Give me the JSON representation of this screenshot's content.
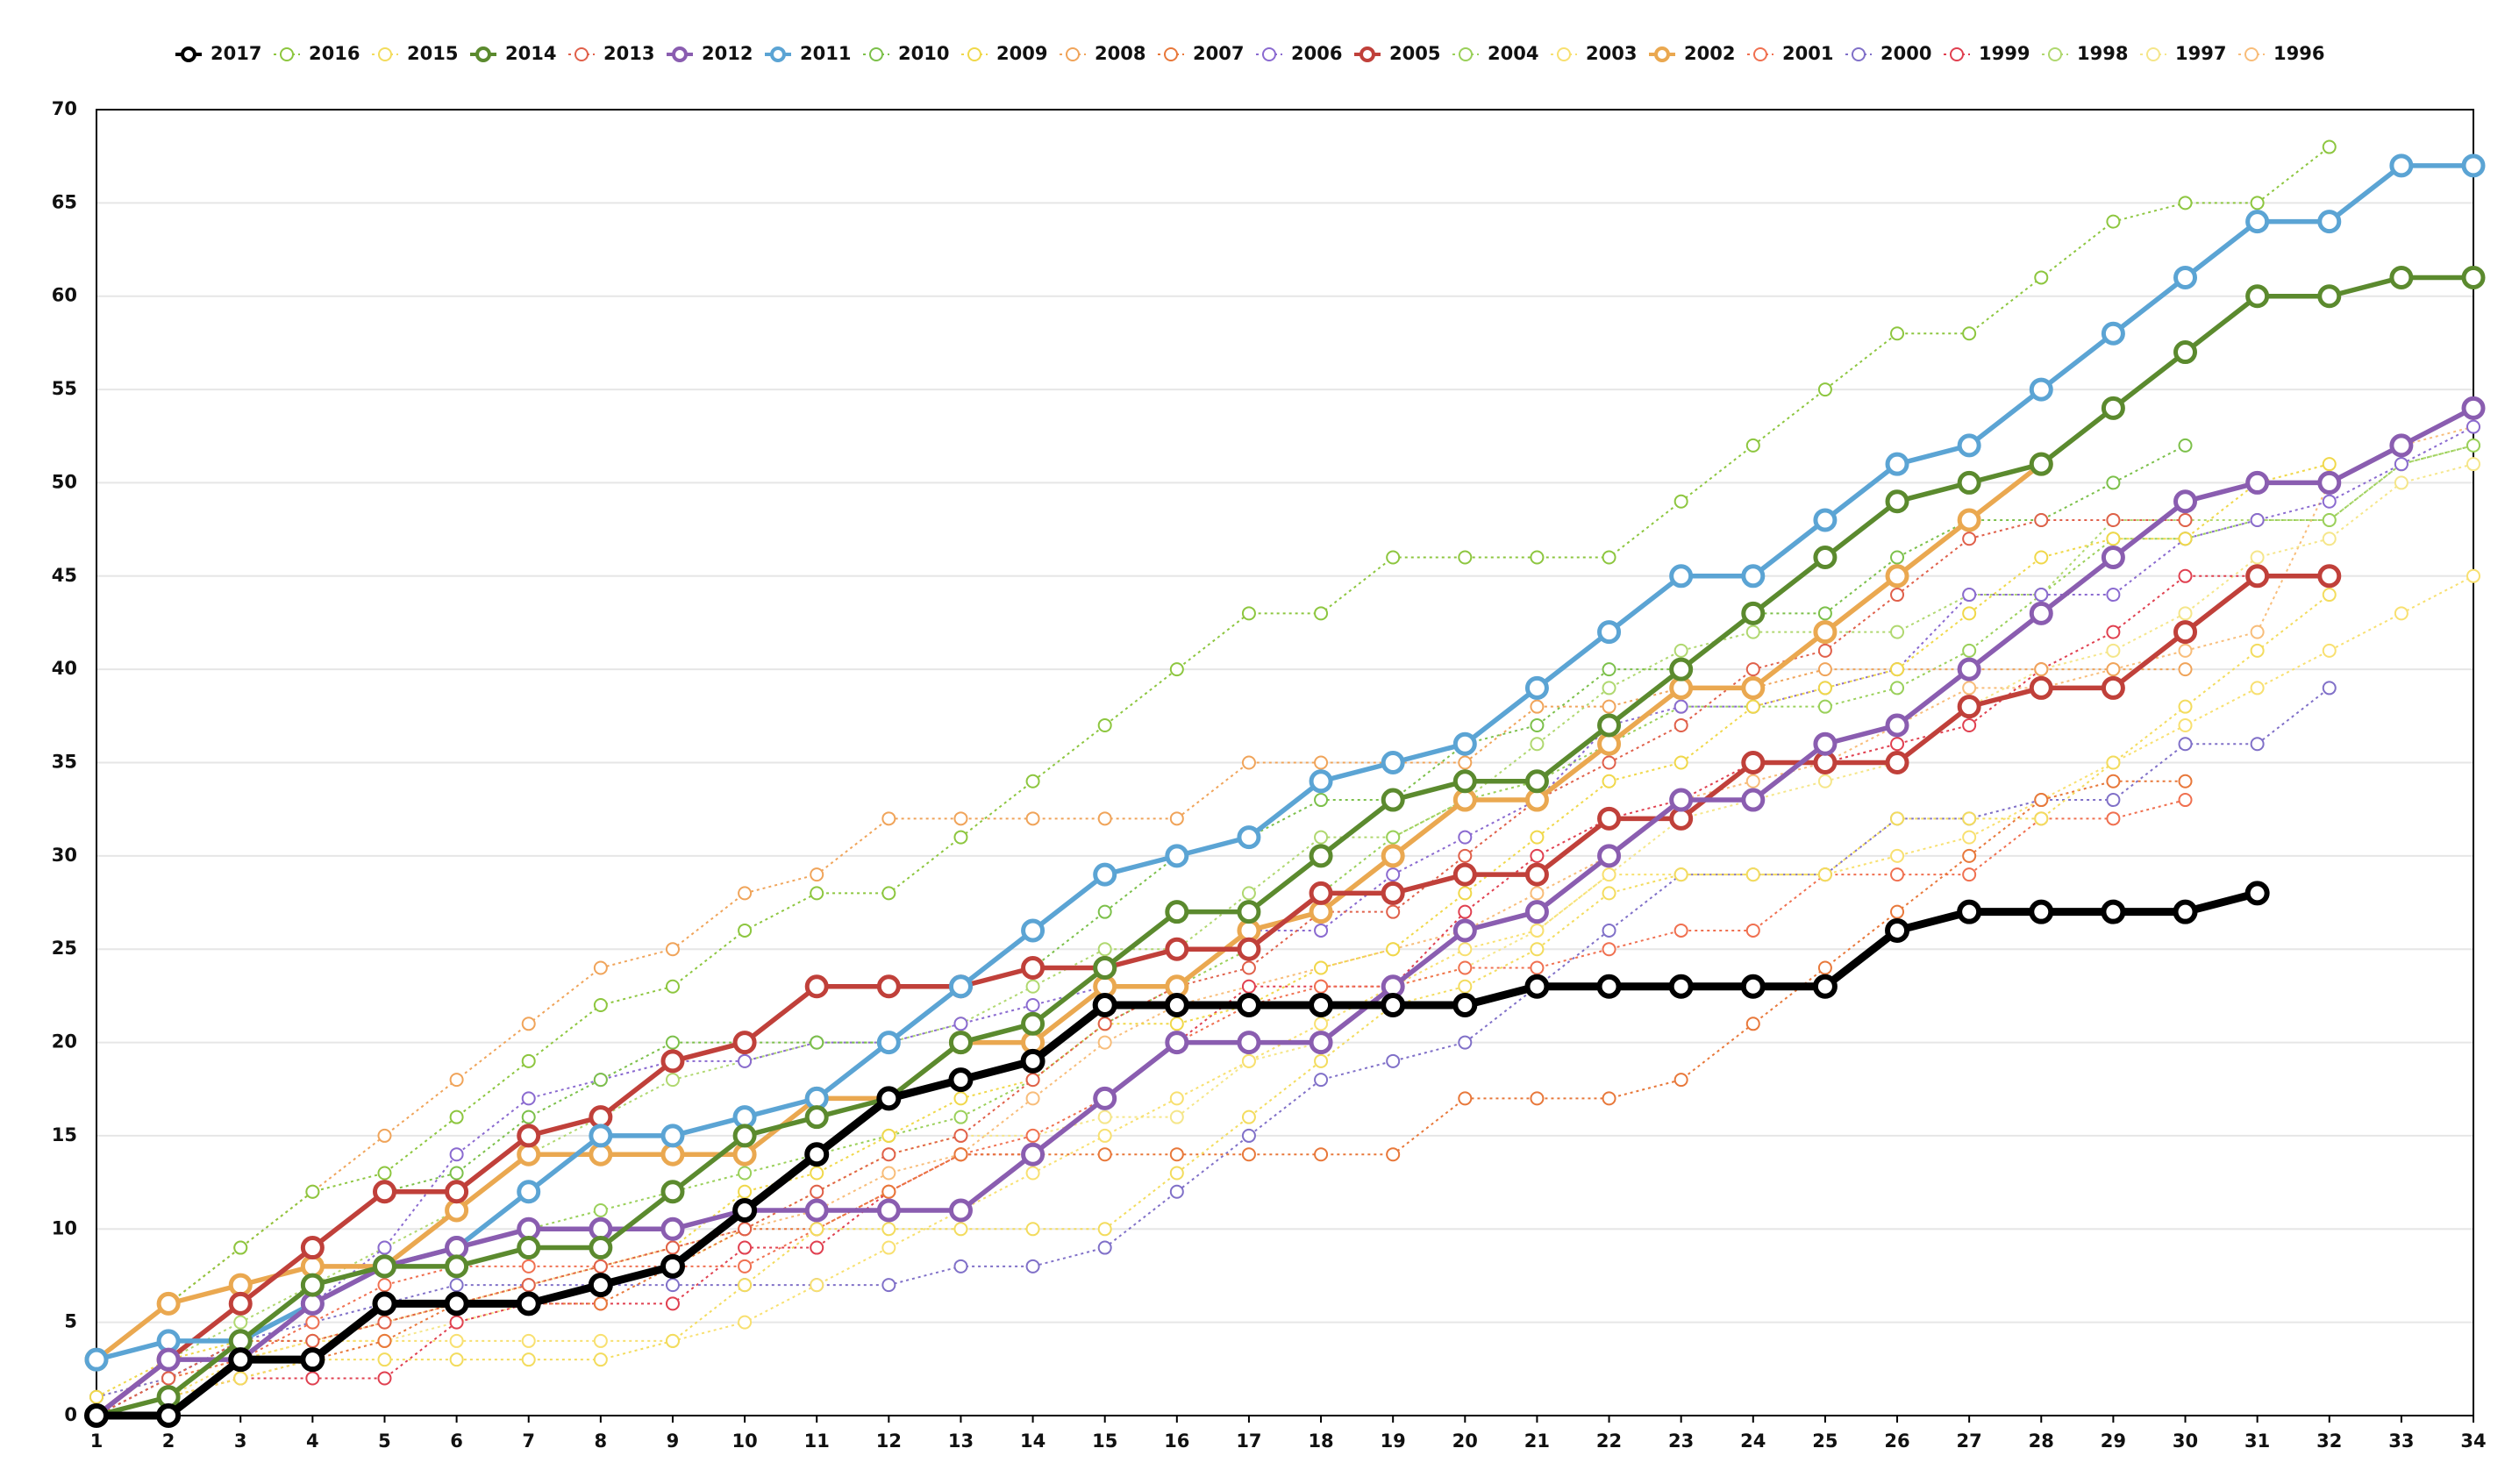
{
  "chart_data": {
    "type": "line",
    "legend": "top",
    "grid": true,
    "x": [
      1,
      2,
      3,
      4,
      5,
      6,
      7,
      8,
      9,
      10,
      11,
      12,
      13,
      14,
      15,
      16,
      17,
      18,
      19,
      20,
      21,
      22,
      23,
      24,
      25,
      26,
      27,
      28,
      29,
      30,
      31,
      32,
      33,
      34
    ],
    "xlim": [
      1,
      34
    ],
    "xticks": [
      1,
      2,
      3,
      4,
      5,
      6,
      7,
      8,
      9,
      10,
      11,
      12,
      13,
      14,
      15,
      16,
      17,
      18,
      19,
      20,
      21,
      22,
      23,
      24,
      25,
      26,
      27,
      28,
      29,
      30,
      31,
      32,
      33,
      34
    ],
    "ylim": [
      0,
      70
    ],
    "yticks": [
      0,
      5,
      10,
      15,
      20,
      25,
      30,
      35,
      40,
      45,
      50,
      55,
      60,
      65,
      70
    ],
    "series": [
      {
        "name": "2017",
        "color": "#000000",
        "style": "bold",
        "values": [
          0,
          0,
          3,
          3,
          6,
          6,
          6,
          7,
          8,
          11,
          14,
          17,
          18,
          19,
          22,
          22,
          22,
          22,
          22,
          22,
          23,
          23,
          23,
          23,
          23,
          26,
          27,
          27,
          27,
          27,
          28,
          null,
          null,
          null
        ]
      },
      {
        "name": "2016",
        "color": "#8dc63f",
        "style": "dotted",
        "values": [
          3,
          6,
          9,
          12,
          13,
          16,
          19,
          22,
          23,
          26,
          28,
          28,
          31,
          34,
          37,
          40,
          43,
          43,
          46,
          46,
          46,
          46,
          49,
          52,
          55,
          58,
          58,
          61,
          64,
          65,
          65,
          68,
          null,
          null
        ]
      },
      {
        "name": "2015",
        "color": "#f3dc5e",
        "style": "dotted",
        "values": [
          0,
          1,
          2,
          3,
          3,
          3,
          3,
          3,
          4,
          7,
          10,
          10,
          10,
          10,
          10,
          13,
          16,
          19,
          22,
          23,
          25,
          28,
          29,
          29,
          29,
          32,
          32,
          32,
          35,
          38,
          41,
          44,
          null,
          null
        ]
      },
      {
        "name": "2014",
        "color": "#5b8a2e",
        "style": "solid",
        "values": [
          0,
          1,
          4,
          7,
          8,
          8,
          9,
          9,
          12,
          15,
          16,
          17,
          20,
          21,
          24,
          27,
          27,
          30,
          33,
          34,
          34,
          37,
          40,
          43,
          46,
          49,
          50,
          51,
          54,
          57,
          60,
          60,
          61,
          61
        ]
      },
      {
        "name": "2013",
        "color": "#e0604a",
        "style": "dotted",
        "values": [
          0,
          2,
          4,
          4,
          5,
          6,
          7,
          8,
          9,
          10,
          12,
          14,
          15,
          18,
          21,
          23,
          24,
          27,
          27,
          30,
          33,
          35,
          37,
          40,
          41,
          44,
          47,
          48,
          48,
          48,
          null,
          null,
          null,
          null
        ]
      },
      {
        "name": "2012",
        "color": "#8a5db0",
        "style": "solid",
        "values": [
          0,
          3,
          3,
          6,
          8,
          9,
          10,
          10,
          10,
          11,
          11,
          11,
          11,
          14,
          17,
          20,
          20,
          20,
          23,
          26,
          27,
          30,
          33,
          33,
          36,
          37,
          40,
          43,
          46,
          49,
          50,
          50,
          52,
          54
        ]
      },
      {
        "name": "2011",
        "color": "#5ba4d4",
        "style": "solid",
        "values": [
          3,
          4,
          4,
          6,
          8,
          9,
          12,
          15,
          15,
          16,
          17,
          20,
          23,
          26,
          29,
          30,
          31,
          34,
          35,
          36,
          39,
          42,
          45,
          45,
          48,
          51,
          52,
          55,
          58,
          61,
          64,
          64,
          67,
          67
        ]
      },
      {
        "name": "2010",
        "color": "#7cc04a",
        "style": "dotted",
        "values": [
          0,
          3,
          6,
          9,
          12,
          13,
          16,
          18,
          20,
          20,
          20,
          20,
          23,
          24,
          27,
          30,
          31,
          33,
          33,
          36,
          37,
          40,
          40,
          43,
          43,
          46,
          48,
          48,
          50,
          52,
          null,
          null,
          null,
          null
        ]
      },
      {
        "name": "2009",
        "color": "#f0d84a",
        "style": "dotted",
        "values": [
          1,
          3,
          4,
          4,
          5,
          6,
          7,
          8,
          9,
          12,
          13,
          15,
          17,
          18,
          21,
          21,
          22,
          24,
          25,
          28,
          31,
          34,
          35,
          38,
          39,
          40,
          43,
          46,
          47,
          47,
          50,
          51,
          null,
          null
        ]
      },
      {
        "name": "2008",
        "color": "#f0a45a",
        "style": "dotted",
        "values": [
          3,
          6,
          9,
          12,
          15,
          18,
          21,
          24,
          25,
          28,
          29,
          32,
          32,
          32,
          32,
          32,
          35,
          35,
          35,
          35,
          38,
          38,
          39,
          39,
          40,
          40,
          40,
          40,
          40,
          40,
          null,
          null,
          null,
          null
        ]
      },
      {
        "name": "2007",
        "color": "#e8783a",
        "style": "dotted",
        "values": [
          0,
          1,
          2,
          3,
          4,
          6,
          6,
          6,
          8,
          10,
          10,
          12,
          14,
          14,
          14,
          14,
          14,
          14,
          14,
          17,
          17,
          17,
          18,
          21,
          24,
          27,
          30,
          33,
          34,
          34,
          null,
          null,
          null,
          null
        ]
      },
      {
        "name": "2006",
        "color": "#8a6ad0",
        "style": "dotted",
        "values": [
          0,
          2,
          4,
          6,
          9,
          14,
          17,
          18,
          19,
          19,
          20,
          20,
          21,
          22,
          23,
          23,
          26,
          26,
          29,
          31,
          33,
          37,
          38,
          38,
          39,
          40,
          44,
          44,
          44,
          47,
          48,
          49,
          51,
          53
        ]
      },
      {
        "name": "2005",
        "color": "#c0403a",
        "style": "solid",
        "values": [
          0,
          3,
          6,
          9,
          12,
          12,
          15,
          16,
          19,
          20,
          23,
          23,
          23,
          24,
          24,
          25,
          25,
          28,
          28,
          29,
          29,
          32,
          32,
          35,
          35,
          35,
          38,
          39,
          39,
          42,
          45,
          45,
          null,
          null
        ]
      },
      {
        "name": "2004",
        "color": "#9ad05a",
        "style": "dotted",
        "values": [
          0,
          2,
          4,
          6,
          8,
          9,
          10,
          11,
          12,
          13,
          14,
          15,
          16,
          18,
          21,
          23,
          25,
          28,
          31,
          33,
          34,
          36,
          38,
          38,
          38,
          39,
          41,
          44,
          47,
          47,
          48,
          48,
          51,
          52
        ]
      },
      {
        "name": "2003",
        "color": "#f8e070",
        "style": "dotted",
        "values": [
          0,
          1,
          3,
          4,
          4,
          4,
          4,
          4,
          4,
          5,
          7,
          9,
          11,
          13,
          15,
          17,
          19,
          21,
          23,
          25,
          26,
          29,
          29,
          29,
          29,
          30,
          31,
          33,
          35,
          37,
          39,
          41,
          43,
          45
        ]
      },
      {
        "name": "2002",
        "color": "#eaa850",
        "style": "solid",
        "values": [
          3,
          6,
          7,
          8,
          8,
          11,
          14,
          14,
          14,
          14,
          17,
          17,
          20,
          20,
          23,
          23,
          26,
          27,
          30,
          33,
          33,
          36,
          39,
          39,
          42,
          45,
          48,
          51,
          null,
          null,
          null,
          null,
          null,
          null
        ]
      },
      {
        "name": "2001",
        "color": "#f07050",
        "style": "dotted",
        "values": [
          0,
          2,
          3,
          5,
          7,
          8,
          8,
          8,
          8,
          8,
          10,
          12,
          14,
          15,
          17,
          20,
          22,
          23,
          23,
          24,
          24,
          25,
          26,
          26,
          29,
          29,
          29,
          32,
          32,
          33,
          null,
          null,
          null,
          null
        ]
      },
      {
        "name": "2000",
        "color": "#8070c8",
        "style": "dotted",
        "values": [
          1,
          2,
          4,
          5,
          6,
          7,
          7,
          7,
          7,
          7,
          7,
          7,
          8,
          8,
          9,
          12,
          15,
          18,
          19,
          20,
          23,
          26,
          29,
          29,
          29,
          32,
          32,
          33,
          33,
          36,
          36,
          39,
          null,
          null
        ]
      },
      {
        "name": "1999",
        "color": "#e04050",
        "style": "dotted",
        "values": [
          0,
          1,
          2,
          2,
          2,
          5,
          6,
          6,
          6,
          9,
          9,
          12,
          14,
          14,
          17,
          20,
          23,
          23,
          23,
          27,
          30,
          32,
          33,
          35,
          35,
          36,
          37,
          40,
          42,
          45,
          45,
          null,
          null,
          null
        ]
      },
      {
        "name": "1998",
        "color": "#b0d870",
        "style": "dotted",
        "values": [
          0,
          3,
          5,
          7,
          9,
          11,
          14,
          16,
          18,
          19,
          20,
          20,
          21,
          23,
          25,
          25,
          28,
          31,
          31,
          33,
          36,
          39,
          41,
          42,
          42,
          42,
          44,
          44,
          48,
          48,
          48,
          48,
          51,
          52
        ]
      },
      {
        "name": "1997",
        "color": "#f5e68a",
        "style": "dotted",
        "values": [
          1,
          2,
          3,
          4,
          4,
          5,
          6,
          7,
          8,
          10,
          12,
          14,
          15,
          15,
          16,
          16,
          19,
          20,
          23,
          24,
          26,
          29,
          32,
          33,
          34,
          35,
          38,
          40,
          41,
          43,
          46,
          47,
          50,
          51
        ]
      },
      {
        "name": "1996",
        "color": "#f8bd7a",
        "style": "dotted",
        "values": [
          0,
          2,
          3,
          4,
          5,
          6,
          7,
          8,
          9,
          10,
          11,
          13,
          14,
          17,
          20,
          22,
          23,
          24,
          25,
          26,
          28,
          30,
          33,
          34,
          35,
          37,
          39,
          39,
          40,
          41,
          42,
          50,
          52,
          53
        ]
      }
    ]
  }
}
